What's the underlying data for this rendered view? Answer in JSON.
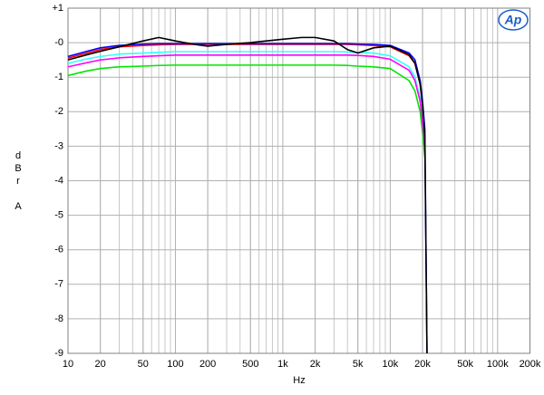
{
  "chart_data": {
    "type": "line",
    "xlabel": "Hz",
    "ylabel": [
      "d",
      "B",
      "r",
      "A"
    ],
    "logo": "Ap",
    "xscale": "log",
    "grid": true,
    "xlim": [
      10,
      200000
    ],
    "ylim": [
      -9,
      1
    ],
    "xticks": [
      10,
      20,
      50,
      100,
      200,
      500,
      {
        "value": 1000,
        "label": "1k"
      },
      {
        "value": 2000,
        "label": "2k"
      },
      {
        "value": 5000,
        "label": "5k"
      },
      {
        "value": 10000,
        "label": "10k"
      },
      {
        "value": 20000,
        "label": "20k"
      },
      {
        "value": 50000,
        "label": "50k"
      },
      {
        "value": 100000,
        "label": "100k"
      },
      {
        "value": 200000,
        "label": "200k"
      }
    ],
    "yticks": [
      {
        "value": 1,
        "label": "+1"
      },
      {
        "value": 0,
        "label": "-0"
      },
      -1,
      -2,
      -3,
      -4,
      -5,
      -6,
      -7,
      -8,
      -9
    ],
    "x": [
      10,
      15,
      20,
      30,
      50,
      70,
      100,
      150,
      200,
      300,
      500,
      700,
      1000,
      1500,
      2000,
      3000,
      4000,
      5000,
      7000,
      10000,
      15000,
      17000,
      19000,
      20000,
      21000,
      22000
    ],
    "series": [
      {
        "color": "#00e600",
        "values": [
          -0.95,
          -0.82,
          -0.75,
          -0.7,
          -0.68,
          -0.66,
          -0.65,
          -0.65,
          -0.65,
          -0.65,
          -0.65,
          -0.65,
          -0.65,
          -0.65,
          -0.65,
          -0.65,
          -0.66,
          -0.68,
          -0.7,
          -0.75,
          -1.1,
          -1.4,
          -2.0,
          -2.6,
          -3.3,
          null
        ]
      },
      {
        "color": "#33ffff",
        "values": [
          -0.6,
          -0.47,
          -0.4,
          -0.33,
          -0.3,
          -0.28,
          -0.26,
          -0.26,
          -0.26,
          -0.26,
          -0.26,
          -0.26,
          -0.26,
          -0.26,
          -0.26,
          -0.26,
          -0.27,
          -0.28,
          -0.3,
          -0.38,
          -0.7,
          -1.0,
          -1.6,
          -2.2,
          -2.9,
          null
        ]
      },
      {
        "color": "#ff00ff",
        "values": [
          -0.7,
          -0.58,
          -0.5,
          -0.44,
          -0.4,
          -0.38,
          -0.36,
          -0.36,
          -0.36,
          -0.36,
          -0.36,
          -0.36,
          -0.36,
          -0.36,
          -0.36,
          -0.36,
          -0.36,
          -0.37,
          -0.4,
          -0.48,
          -0.8,
          -1.1,
          -1.7,
          -2.3,
          -3.0,
          null
        ]
      },
      {
        "color": "#ff0000",
        "values": [
          -0.45,
          -0.3,
          -0.2,
          -0.12,
          -0.08,
          -0.06,
          -0.05,
          -0.05,
          -0.05,
          -0.05,
          -0.05,
          -0.05,
          -0.05,
          -0.05,
          -0.05,
          -0.05,
          -0.05,
          -0.06,
          -0.08,
          -0.12,
          -0.38,
          -0.6,
          -1.2,
          -1.8,
          -2.6,
          null
        ]
      },
      {
        "color": "#0000ff",
        "values": [
          -0.4,
          -0.25,
          -0.15,
          -0.08,
          -0.04,
          -0.03,
          -0.03,
          -0.03,
          -0.03,
          -0.03,
          -0.03,
          -0.03,
          -0.03,
          -0.03,
          -0.03,
          -0.03,
          -0.03,
          -0.04,
          -0.05,
          -0.08,
          -0.3,
          -0.5,
          -1.1,
          -1.7,
          -2.5,
          -9
        ]
      },
      {
        "color": "#000000",
        "values": [
          -0.5,
          -0.35,
          -0.25,
          -0.12,
          0.05,
          0.15,
          0.05,
          -0.05,
          -0.1,
          -0.05,
          0,
          0.05,
          0.1,
          0.15,
          0.15,
          0.05,
          -0.2,
          -0.3,
          -0.15,
          -0.1,
          -0.35,
          -0.6,
          -1.2,
          -1.8,
          -2.7,
          -9
        ]
      }
    ]
  }
}
